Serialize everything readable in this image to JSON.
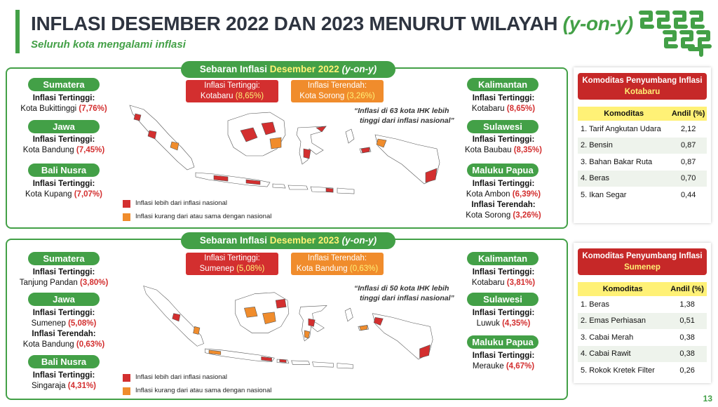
{
  "header": {
    "title_main": "INFLASI DESEMBER 2022 DAN 2023 MENURUT WILAYAH",
    "title_yoy": "(y-on-y)",
    "subtitle": "Seluruh kota mengalami inflasi"
  },
  "colors": {
    "green": "#43a047",
    "red": "#d32f2f",
    "orange": "#f08c2c",
    "yellow": "#fff176"
  },
  "icons": [
    "bps-logo",
    "indonesia-map"
  ],
  "panel_2022": {
    "header_pre": "Sebaran Inflasi",
    "header_hl": "Desember 2022",
    "header_post": "(y-on-y)",
    "callout_high": {
      "label": "Inflasi Tertinggi:",
      "city": "Kotabaru",
      "value": "(8,65%)"
    },
    "callout_low": {
      "label": "Inflasi Terendah:",
      "city": "Kota Sorong",
      "value": "(3,26%)"
    },
    "quote": [
      "“Inflasi di 63 kota IHK lebih",
      "tinggi dari inflasi nasional”"
    ],
    "legend_red": "Inflasi lebih dari inflasi nasional",
    "legend_orange": "Inflasi kurang dari atau sama dengan nasional",
    "regions": [
      {
        "name": "Sumatera",
        "lines": [
          {
            "label": "Inflasi Tertinggi:",
            "city": "Kota Bukittinggi",
            "value": "(7,76%)"
          }
        ]
      },
      {
        "name": "Jawa",
        "lines": [
          {
            "label": "Inflasi Tertinggi:",
            "city": "Kota Bandung",
            "value": "(7,45%)"
          }
        ]
      },
      {
        "name": "Bali Nusra",
        "lines": [
          {
            "label": "Inflasi Tertinggi:",
            "city": "Kota Kupang",
            "value": "(7,07%)"
          }
        ]
      },
      {
        "name": "Kalimantan",
        "lines": [
          {
            "label": "Inflasi Tertinggi:",
            "city": "Kotabaru",
            "value": "(8,65%)"
          }
        ]
      },
      {
        "name": "Sulawesi",
        "lines": [
          {
            "label": "Inflasi Tertinggi:",
            "city": "Kota Baubau",
            "value": "(8,35%)"
          }
        ]
      },
      {
        "name": "Maluku Papua",
        "lines": [
          {
            "label": "Inflasi Tertinggi:",
            "city": "Kota Ambon",
            "value": "(6,39%)"
          },
          {
            "label": "Inflasi Terendah:",
            "city": "Kota Sorong",
            "value": "(3,26%)"
          }
        ]
      }
    ]
  },
  "panel_2023": {
    "header_pre": "Sebaran Inflasi",
    "header_hl": "Desember 2023",
    "header_post": "(y-on-y)",
    "callout_high": {
      "label": "Inflasi Tertinggi:",
      "city": "Sumenep",
      "value": "(5,08%)"
    },
    "callout_low": {
      "label": "Inflasi Terendah:",
      "city": "Kota Bandung",
      "value": "(0,63%)"
    },
    "quote": [
      "“Inflasi di 50 kota IHK lebih",
      "tinggi dari inflasi nasional”"
    ],
    "legend_red": "Inflasi lebih dari inflasi nasional",
    "legend_orange": "Inflasi kurang dari atau sama dengan nasional",
    "regions": [
      {
        "name": "Sumatera",
        "lines": [
          {
            "label": "Inflasi Tertinggi:",
            "city": "Tanjung Pandan",
            "value": "(3,80%)"
          }
        ]
      },
      {
        "name": "Jawa",
        "lines": [
          {
            "label": "Inflasi Tertinggi:",
            "city": "Sumenep",
            "value": "(5,08%)"
          },
          {
            "label": "Inflasi Terendah:",
            "city": "Kota Bandung",
            "value": "(0,63%)"
          }
        ]
      },
      {
        "name": "Bali Nusra",
        "lines": [
          {
            "label": "Inflasi Tertinggi:",
            "city": "Singaraja",
            "value": "(4,31%)"
          }
        ]
      },
      {
        "name": "Kalimantan",
        "lines": [
          {
            "label": "Inflasi Tertinggi:",
            "city": "Kotabaru",
            "value": "(3,81%)"
          }
        ]
      },
      {
        "name": "Sulawesi",
        "lines": [
          {
            "label": "Inflasi Tertinggi:",
            "city": "Luwuk",
            "value": "(4,35%)"
          }
        ]
      },
      {
        "name": "Maluku Papua",
        "lines": [
          {
            "label": "Inflasi Tertinggi:",
            "city": "Merauke",
            "value": "(4,67%)"
          }
        ]
      }
    ]
  },
  "commodities_2022": {
    "title": "Komoditas Penyumbang Inflasi",
    "city": "Kotabaru",
    "col_commodity": "Komoditas",
    "col_share": "Andil (%)",
    "rows": [
      {
        "name": "1. Tarif Angkutan Udara",
        "share": "2,12"
      },
      {
        "name": "2. Bensin",
        "share": "0,87"
      },
      {
        "name": "3. Bahan Bakar Ruta",
        "share": "0,87"
      },
      {
        "name": "4. Beras",
        "share": "0,70"
      },
      {
        "name": "5. Ikan Segar",
        "share": "0,44"
      }
    ]
  },
  "commodities_2023": {
    "title": "Komoditas Penyumbang Inflasi",
    "city": "Sumenep",
    "col_commodity": "Komoditas",
    "col_share": "Andil (%)",
    "rows": [
      {
        "name": "1. Beras",
        "share": "1,38"
      },
      {
        "name": "2. Emas Perhiasan",
        "share": "0,51"
      },
      {
        "name": "3. Cabai Merah",
        "share": "0,38"
      },
      {
        "name": "4. Cabai Rawit",
        "share": "0,38"
      },
      {
        "name": "5. Rokok Kretek Filter",
        "share": "0,26"
      }
    ]
  },
  "page_number": "13"
}
